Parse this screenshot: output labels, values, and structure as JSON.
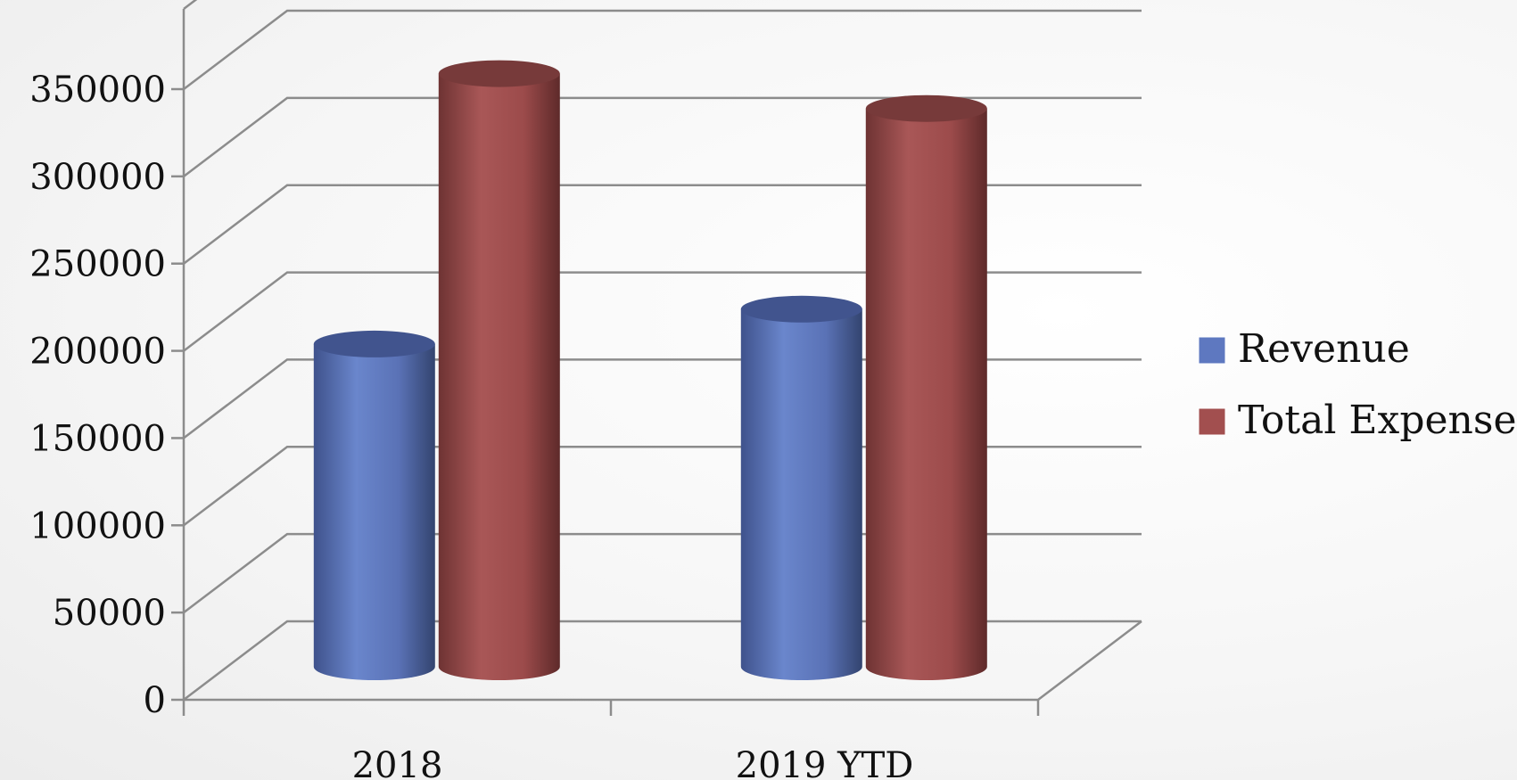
{
  "chart_data": {
    "type": "bar",
    "style": "3d-cylinder",
    "categories": [
      "2018",
      "2019 YTD"
    ],
    "series": [
      {
        "name": "Revenue",
        "values": [
          185000,
          205000
        ],
        "color": "#5e78c0"
      },
      {
        "name": "Total Expense",
        "values": [
          340000,
          320000
        ],
        "color": "#a24f4f"
      }
    ],
    "y_ticks": [
      "0",
      "50000",
      "100000",
      "150000",
      "200000",
      "250000",
      "300000",
      "350000"
    ],
    "ylim": [
      0,
      350000
    ],
    "grid": true,
    "legend": "right",
    "title": "",
    "xlabel": "",
    "ylabel": ""
  }
}
